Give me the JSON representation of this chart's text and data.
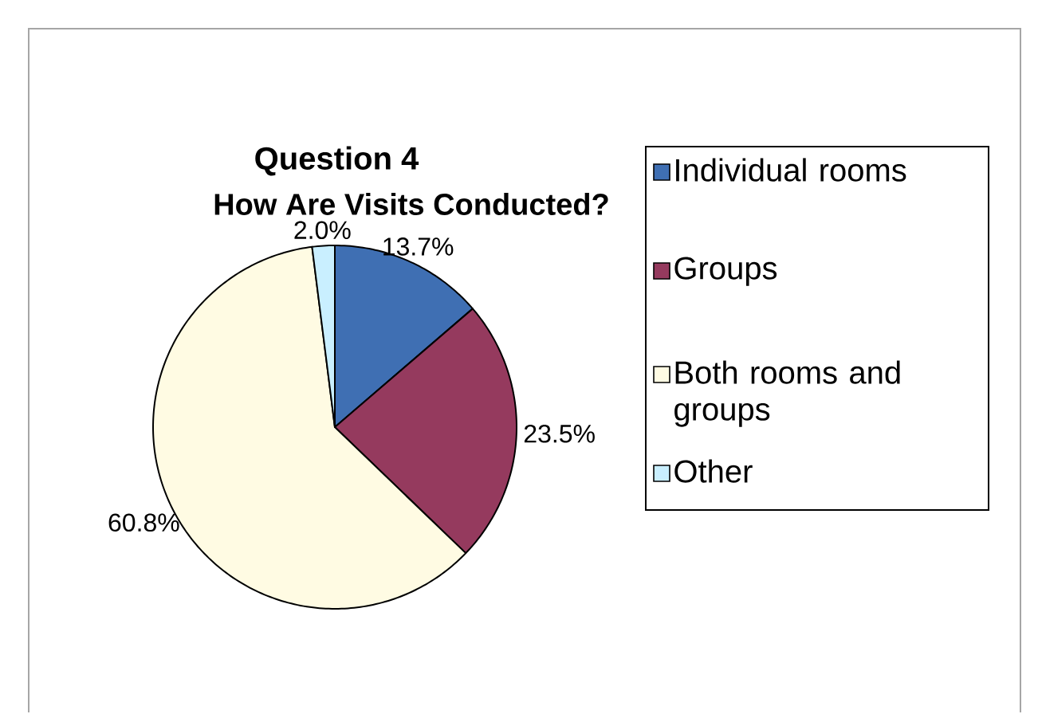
{
  "chart_data": {
    "type": "pie",
    "title": "Question 4",
    "subtitle": "How Are Visits Conducted?",
    "categories": [
      "Individual rooms",
      "Groups",
      "Both rooms and groups",
      "Other"
    ],
    "values": [
      13.7,
      23.5,
      60.8,
      2.0
    ],
    "value_labels": [
      "13.7%",
      "23.5%",
      "60.8%",
      "2.0%"
    ],
    "colors": [
      "#3f6fb3",
      "#953a5e",
      "#fffbe3",
      "#c9efff"
    ],
    "legend": "right"
  }
}
